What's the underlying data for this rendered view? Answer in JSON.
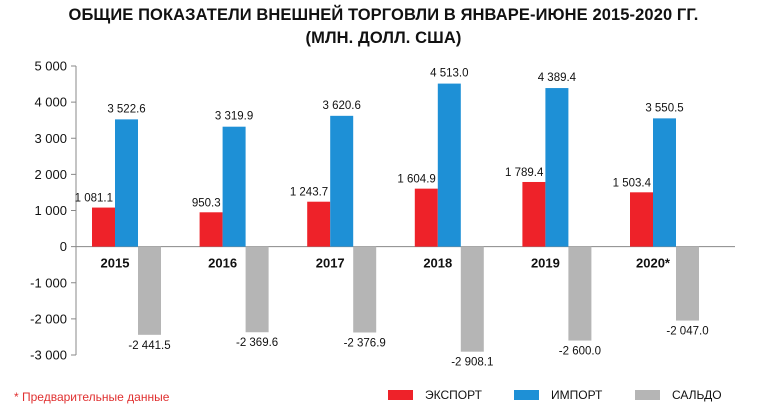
{
  "title_line1": "ОБЩИЕ ПОКАЗАТЕЛИ ВНЕШНЕЙ ТОРГОВЛИ В ЯНВАРЕ-ИЮНЕ 2015-2020 ГГ.",
  "title_line2": "(МЛН. ДОЛЛ. США)",
  "footnote": "* Предварительные данные",
  "chart_data": {
    "type": "bar",
    "categories": [
      "2015",
      "2016",
      "2017",
      "2018",
      "2019",
      "2020*"
    ],
    "series": [
      {
        "name": "ЭКСПОРТ",
        "color": "#ee2229",
        "values": [
          1081.1,
          950.3,
          1243.7,
          1604.9,
          1789.4,
          1503.4
        ],
        "labels": [
          "1 081.1",
          "950.3",
          "1 243.7",
          "1 604.9",
          "1 789.4",
          "1 503.4"
        ]
      },
      {
        "name": "ИМПОРТ",
        "color": "#1e90d6",
        "values": [
          3522.6,
          3319.9,
          3620.6,
          4513.0,
          4389.4,
          3550.5
        ],
        "labels": [
          "3 522.6",
          "3 319.9",
          "3 620.6",
          "4 513.0",
          "4 389.4",
          "3 550.5"
        ]
      },
      {
        "name": "САЛЬДО",
        "color": "#b5b5b5",
        "values": [
          -2441.5,
          -2369.6,
          -2376.9,
          -2908.1,
          -2600.0,
          -2047.0
        ],
        "labels": [
          "-2 441.5",
          "-2 369.6",
          "-2 376.9",
          "-2 908.1",
          "-2 600.0",
          "-2 047.0"
        ]
      }
    ],
    "yticks": [
      5000,
      4000,
      3000,
      2000,
      1000,
      0,
      -1000,
      -2000,
      -3000
    ],
    "ytick_labels": [
      "5 000",
      "4 000",
      "3 000",
      "2 000",
      "1 000",
      "0",
      "-1 000",
      "-2 000",
      "-3 000"
    ],
    "ylim": [
      -3000,
      5000
    ],
    "grid": false,
    "legend_position": "bottom"
  }
}
